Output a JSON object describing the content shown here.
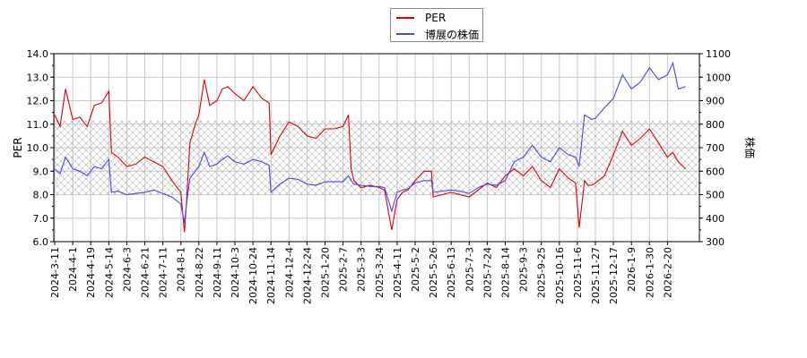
{
  "legend": {
    "items": [
      {
        "label": "PER",
        "color": "#dd0000"
      },
      {
        "label": "博展の株価",
        "color": "#4444ee"
      }
    ]
  },
  "axes": {
    "left_title": "PER",
    "right_title": "株価"
  },
  "chart_data": {
    "type": "line",
    "title": "",
    "xlabel": "",
    "ylabel": "PER",
    "y2label": "株価",
    "ylim": [
      6.0,
      14.0
    ],
    "y2lim": [
      300,
      1100
    ],
    "yticks": [
      "6.0",
      "7.0",
      "8.0",
      "9.0",
      "10.0",
      "11.0",
      "12.0",
      "13.0",
      "14.0"
    ],
    "y2ticks": [
      "300",
      "400",
      "500",
      "600",
      "700",
      "800",
      "900",
      "1000",
      "1100"
    ],
    "grid": true,
    "legend_position": "top-center",
    "shaded_band": {
      "per_from": 8.0,
      "per_to": 11.15,
      "style": "crosshatch"
    },
    "categories": [
      "2024-3-11",
      "2024-4-1",
      "2024-4-19",
      "2024-5-14",
      "2024-6-3",
      "2024-6-21",
      "2024-7-11",
      "2024-8-1",
      "2024-8-22",
      "2024-9-11",
      "2024-10-3",
      "2024-10-24",
      "2024-11-14",
      "2024-12-4",
      "2024-12-24",
      "2025-1-20",
      "2025-2-7",
      "2025-3-3",
      "2025-3-24",
      "2025-4-11",
      "2025-5-2",
      "2025-5-26",
      "2025-6-13",
      "2025-7-3",
      "2025-7-24",
      "2025-8-14",
      "2025-9-3",
      "2025-9-25",
      "2025-10-16",
      "2025-11-6",
      "2025-11-27",
      "2025-12-17",
      "2026-1-9",
      "2026-1-30",
      "2026-2-20"
    ],
    "series": [
      {
        "name": "PER",
        "axis": "left",
        "color": "#dd0000",
        "x": [
          0,
          0.3,
          0.6,
          1.0,
          1.4,
          1.8,
          2.2,
          2.6,
          3.0,
          3.15,
          3.5,
          4.0,
          4.5,
          5.0,
          5.5,
          6.0,
          6.5,
          7.0,
          7.2,
          7.3,
          7.5,
          7.8,
          8.0,
          8.3,
          8.6,
          9.0,
          9.3,
          9.6,
          10.0,
          10.5,
          11.0,
          11.5,
          11.9,
          12.0,
          12.5,
          13.0,
          13.5,
          14.0,
          14.5,
          15.0,
          15.5,
          16.0,
          16.3,
          16.45,
          16.6,
          17.0,
          17.5,
          18.0,
          18.3,
          18.7,
          19.0,
          19.3,
          19.6,
          20.0,
          20.5,
          20.9,
          21.0,
          21.5,
          22.0,
          22.5,
          23.0,
          23.5,
          24.0,
          24.5,
          25.0,
          25.5,
          26.0,
          26.5,
          27.0,
          27.5,
          28.0,
          28.5,
          28.9,
          29.1,
          29.4,
          29.6,
          29.8,
          30.0,
          30.5,
          31.0,
          31.5,
          32.0,
          32.5,
          33.0,
          33.5,
          34.0,
          34.3,
          34.6,
          35.0
        ],
        "values": [
          11.4,
          10.9,
          12.5,
          11.2,
          11.3,
          10.9,
          11.8,
          11.9,
          12.4,
          9.8,
          9.6,
          9.2,
          9.3,
          9.6,
          9.4,
          9.2,
          8.6,
          8.1,
          6.4,
          7.5,
          10.2,
          11.0,
          11.4,
          12.9,
          11.8,
          12.0,
          12.5,
          12.6,
          12.3,
          12.0,
          12.6,
          12.1,
          11.9,
          9.7,
          10.5,
          11.1,
          10.9,
          10.5,
          10.4,
          10.8,
          10.8,
          10.9,
          11.4,
          9.1,
          8.6,
          8.3,
          8.4,
          8.3,
          8.2,
          6.5,
          7.8,
          8.1,
          8.2,
          8.6,
          9.0,
          9.0,
          7.9,
          8.0,
          8.1,
          8.0,
          7.9,
          8.2,
          8.5,
          8.3,
          8.8,
          9.1,
          8.8,
          9.2,
          8.6,
          8.3,
          9.1,
          8.7,
          8.5,
          6.6,
          8.6,
          8.4,
          8.4,
          8.5,
          8.8,
          9.7,
          10.7,
          10.1,
          10.4,
          10.8,
          10.2,
          9.6,
          9.8,
          9.4,
          9.1
        ]
      },
      {
        "name": "博展の株価",
        "axis": "right",
        "color": "#4444ee",
        "x": [
          0,
          0.3,
          0.6,
          1.0,
          1.4,
          1.8,
          2.2,
          2.6,
          3.0,
          3.15,
          3.5,
          4.0,
          4.5,
          5.0,
          5.5,
          6.0,
          6.5,
          7.0,
          7.2,
          7.3,
          7.5,
          7.8,
          8.0,
          8.3,
          8.6,
          9.0,
          9.3,
          9.6,
          10.0,
          10.5,
          11.0,
          11.5,
          11.9,
          12.0,
          12.5,
          13.0,
          13.5,
          14.0,
          14.5,
          15.0,
          15.5,
          16.0,
          16.3,
          16.45,
          16.6,
          17.0,
          17.5,
          18.0,
          18.3,
          18.7,
          19.0,
          19.3,
          19.6,
          20.0,
          20.5,
          20.9,
          21.0,
          21.5,
          22.0,
          22.5,
          23.0,
          23.5,
          24.0,
          24.5,
          25.0,
          25.5,
          26.0,
          26.5,
          27.0,
          27.5,
          28.0,
          28.5,
          28.9,
          29.1,
          29.4,
          29.6,
          29.8,
          30.0,
          30.5,
          31.0,
          31.5,
          32.0,
          32.5,
          33.0,
          33.5,
          34.0,
          34.3,
          34.6,
          35.0
        ],
        "values": [
          610,
          590,
          660,
          610,
          600,
          580,
          620,
          610,
          650,
          510,
          515,
          500,
          505,
          510,
          520,
          505,
          490,
          460,
          380,
          450,
          570,
          600,
          620,
          680,
          620,
          630,
          650,
          665,
          640,
          630,
          650,
          640,
          625,
          510,
          545,
          570,
          565,
          545,
          540,
          555,
          555,
          555,
          580,
          560,
          545,
          540,
          535,
          535,
          530,
          430,
          510,
          520,
          525,
          550,
          560,
          560,
          510,
          515,
          520,
          515,
          505,
          530,
          545,
          540,
          560,
          640,
          660,
          710,
          660,
          640,
          700,
          670,
          660,
          620,
          840,
          830,
          820,
          825,
          870,
          910,
          1010,
          950,
          980,
          1040,
          990,
          1010,
          1060,
          950,
          960
        ]
      }
    ]
  }
}
